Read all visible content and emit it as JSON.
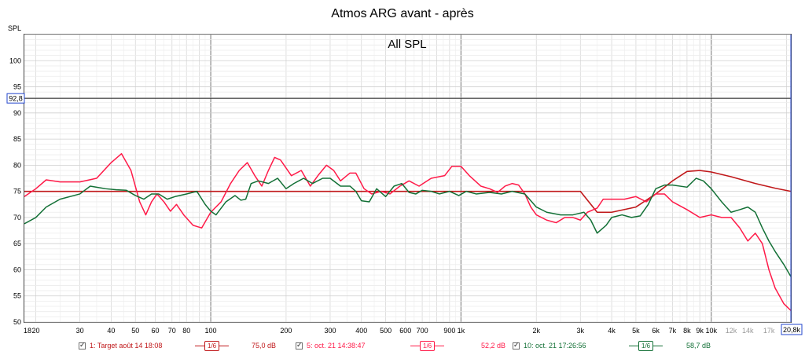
{
  "window": {
    "title": "Atmos ARG avant - après"
  },
  "chart_data": {
    "type": "line",
    "title": "Atmos ARG avant - après",
    "subtitle": "All SPL",
    "ylabel": "SPL",
    "xlabel": "",
    "xscale": "log",
    "xlim": [
      18,
      20800
    ],
    "ylim": [
      50,
      105
    ],
    "grid": true,
    "y_ticks": [
      "50",
      "55",
      "60",
      "65",
      "70",
      "75",
      "80",
      "85",
      "90",
      "95",
      "100"
    ],
    "x_ticks": [
      {
        "v": 18,
        "label": "18"
      },
      {
        "v": 20,
        "label": "20"
      },
      {
        "v": 30,
        "label": "30"
      },
      {
        "v": 40,
        "label": "40"
      },
      {
        "v": 50,
        "label": "50"
      },
      {
        "v": 60,
        "label": "60"
      },
      {
        "v": 70,
        "label": "70"
      },
      {
        "v": 80,
        "label": "80"
      },
      {
        "v": 100,
        "label": "100"
      },
      {
        "v": 200,
        "label": "200"
      },
      {
        "v": 300,
        "label": "300"
      },
      {
        "v": 400,
        "label": "400"
      },
      {
        "v": 500,
        "label": "500"
      },
      {
        "v": 600,
        "label": "600"
      },
      {
        "v": 700,
        "label": "700"
      },
      {
        "v": 900,
        "label": "900"
      },
      {
        "v": 1000,
        "label": "1k"
      },
      {
        "v": 2000,
        "label": "2k"
      },
      {
        "v": 3000,
        "label": "3k"
      },
      {
        "v": 4000,
        "label": "4k"
      },
      {
        "v": 5000,
        "label": "5k"
      },
      {
        "v": 6000,
        "label": "6k"
      },
      {
        "v": 7000,
        "label": "7k"
      },
      {
        "v": 8000,
        "label": "8k"
      },
      {
        "v": 9000,
        "label": "9k"
      },
      {
        "v": 10000,
        "label": "10k"
      },
      {
        "v": 12000,
        "label": "12k"
      },
      {
        "v": 14000,
        "label": "14k"
      },
      {
        "v": 17000,
        "label": "17k"
      },
      {
        "v": 20800,
        "label": "20,8k"
      }
    ],
    "faint_x_ticks": [
      "12k",
      "14k",
      "17k"
    ],
    "cursor": {
      "y": 92.8,
      "label": "92,8",
      "x_label": "20,8k"
    },
    "series": [
      {
        "name": "1: Target août 14 18:08",
        "color": "#c0181a",
        "smoothing": "1/6",
        "readout": "75,0 dB",
        "points": [
          [
            18,
            75
          ],
          [
            3000,
            75
          ],
          [
            3500,
            71
          ],
          [
            4000,
            71
          ],
          [
            5000,
            72
          ],
          [
            6000,
            74.5
          ],
          [
            7000,
            77
          ],
          [
            8000,
            78.8
          ],
          [
            9000,
            79
          ],
          [
            10000,
            78.7
          ],
          [
            12000,
            77.8
          ],
          [
            15000,
            76.5
          ],
          [
            18000,
            75.6
          ],
          [
            20800,
            75
          ]
        ],
        "target_flat": [
          [
            18,
            75
          ],
          [
            1500,
            75
          ]
        ]
      },
      {
        "name": "5: oct. 21 14:38:47",
        "color": "#ff1a48",
        "smoothing": "1/6",
        "readout": "52,2 dB",
        "points": [
          [
            18,
            74
          ],
          [
            20,
            75.5
          ],
          [
            22,
            77.2
          ],
          [
            25,
            76.8
          ],
          [
            30,
            76.8
          ],
          [
            35,
            77.5
          ],
          [
            40,
            80.5
          ],
          [
            44,
            82.2
          ],
          [
            48,
            79
          ],
          [
            52,
            73
          ],
          [
            55,
            70.5
          ],
          [
            58,
            73
          ],
          [
            61,
            74.5
          ],
          [
            65,
            73
          ],
          [
            69,
            71.2
          ],
          [
            73,
            72.5
          ],
          [
            78,
            70.5
          ],
          [
            85,
            68.5
          ],
          [
            92,
            68
          ],
          [
            100,
            71
          ],
          [
            110,
            73
          ],
          [
            120,
            76.5
          ],
          [
            130,
            79
          ],
          [
            140,
            80.5
          ],
          [
            150,
            78
          ],
          [
            160,
            76
          ],
          [
            170,
            79
          ],
          [
            180,
            81.5
          ],
          [
            190,
            81
          ],
          [
            210,
            78
          ],
          [
            230,
            79
          ],
          [
            250,
            76
          ],
          [
            270,
            78.2
          ],
          [
            290,
            80
          ],
          [
            310,
            79
          ],
          [
            330,
            77
          ],
          [
            360,
            78.5
          ],
          [
            380,
            78.5
          ],
          [
            410,
            75.5
          ],
          [
            440,
            74.5
          ],
          [
            480,
            75
          ],
          [
            520,
            74.5
          ],
          [
            570,
            76
          ],
          [
            620,
            77
          ],
          [
            680,
            76
          ],
          [
            760,
            77.5
          ],
          [
            860,
            78
          ],
          [
            920,
            79.8
          ],
          [
            1000,
            79.8
          ],
          [
            1080,
            78
          ],
          [
            1200,
            76
          ],
          [
            1300,
            75.5
          ],
          [
            1400,
            74.8
          ],
          [
            1500,
            76
          ],
          [
            1600,
            76.5
          ],
          [
            1700,
            76.2
          ],
          [
            1800,
            74.5
          ],
          [
            1900,
            72
          ],
          [
            2000,
            70.5
          ],
          [
            2200,
            69.5
          ],
          [
            2400,
            69
          ],
          [
            2600,
            70
          ],
          [
            2800,
            70
          ],
          [
            3000,
            69.5
          ],
          [
            3200,
            71
          ],
          [
            3500,
            71.8
          ],
          [
            3700,
            73.5
          ],
          [
            4000,
            73.5
          ],
          [
            4500,
            73.5
          ],
          [
            5000,
            74
          ],
          [
            5500,
            73
          ],
          [
            6000,
            74.5
          ],
          [
            6500,
            74.5
          ],
          [
            7000,
            73
          ],
          [
            8000,
            71.5
          ],
          [
            9000,
            70
          ],
          [
            10000,
            70.5
          ],
          [
            11000,
            70
          ],
          [
            12000,
            70
          ],
          [
            13000,
            68
          ],
          [
            14000,
            65.5
          ],
          [
            15000,
            67
          ],
          [
            16000,
            65
          ],
          [
            17000,
            60
          ],
          [
            18000,
            56.5
          ],
          [
            19500,
            53.5
          ],
          [
            20800,
            52.2
          ]
        ]
      },
      {
        "name": "10: oct. 21 17:26:56",
        "color": "#137036",
        "smoothing": "1/6",
        "readout": "58,7 dB",
        "points": [
          [
            18,
            68.8
          ],
          [
            20,
            70
          ],
          [
            22,
            72
          ],
          [
            25,
            73.5
          ],
          [
            30,
            74.5
          ],
          [
            33,
            76
          ],
          [
            38,
            75.5
          ],
          [
            42,
            75.3
          ],
          [
            46,
            75.2
          ],
          [
            50,
            74.2
          ],
          [
            54,
            73.5
          ],
          [
            58,
            74.5
          ],
          [
            62,
            74.5
          ],
          [
            67,
            73.5
          ],
          [
            72,
            74
          ],
          [
            80,
            74.5
          ],
          [
            88,
            75
          ],
          [
            95,
            72.5
          ],
          [
            100,
            71.2
          ],
          [
            105,
            70.5
          ],
          [
            115,
            73
          ],
          [
            125,
            74.2
          ],
          [
            132,
            73.3
          ],
          [
            138,
            73.5
          ],
          [
            145,
            76.5
          ],
          [
            155,
            77
          ],
          [
            170,
            76.5
          ],
          [
            185,
            77.5
          ],
          [
            200,
            75.5
          ],
          [
            215,
            76.5
          ],
          [
            235,
            77.5
          ],
          [
            255,
            76.5
          ],
          [
            280,
            77.5
          ],
          [
            300,
            77.5
          ],
          [
            330,
            76
          ],
          [
            360,
            76
          ],
          [
            380,
            75
          ],
          [
            400,
            73.2
          ],
          [
            430,
            73
          ],
          [
            460,
            75.5
          ],
          [
            500,
            74
          ],
          [
            540,
            76
          ],
          [
            580,
            76.5
          ],
          [
            620,
            74.8
          ],
          [
            660,
            74.5
          ],
          [
            700,
            75.2
          ],
          [
            760,
            75
          ],
          [
            820,
            74.5
          ],
          [
            900,
            75
          ],
          [
            980,
            74.2
          ],
          [
            1050,
            75
          ],
          [
            1150,
            74.5
          ],
          [
            1300,
            74.8
          ],
          [
            1450,
            74.5
          ],
          [
            1600,
            75
          ],
          [
            1800,
            74.5
          ],
          [
            2000,
            72
          ],
          [
            2200,
            71
          ],
          [
            2500,
            70.5
          ],
          [
            2800,
            70.5
          ],
          [
            3100,
            71
          ],
          [
            3300,
            69.5
          ],
          [
            3500,
            67
          ],
          [
            3800,
            68.5
          ],
          [
            4000,
            70
          ],
          [
            4400,
            70.5
          ],
          [
            4800,
            70
          ],
          [
            5200,
            70.3
          ],
          [
            5600,
            72.5
          ],
          [
            6000,
            75.5
          ],
          [
            6500,
            76.2
          ],
          [
            7000,
            76.2
          ],
          [
            8000,
            75.8
          ],
          [
            8700,
            77.5
          ],
          [
            9300,
            77
          ],
          [
            10000,
            75.5
          ],
          [
            11000,
            73
          ],
          [
            12000,
            71
          ],
          [
            13000,
            71.5
          ],
          [
            14000,
            72
          ],
          [
            15000,
            71
          ],
          [
            16000,
            68
          ],
          [
            17000,
            65.5
          ],
          [
            18000,
            63.5
          ],
          [
            19500,
            61
          ],
          [
            20800,
            58.7
          ]
        ]
      }
    ],
    "legend": {
      "placement": "bottom"
    }
  }
}
